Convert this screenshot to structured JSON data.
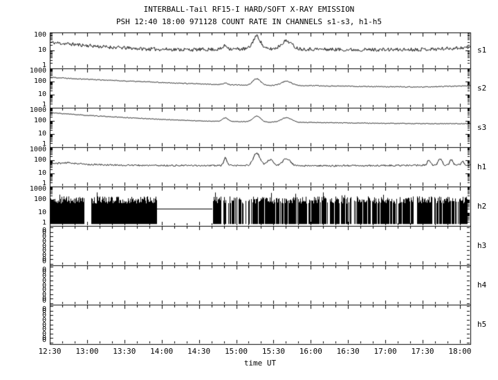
{
  "title": {
    "line1": "INTERBALL-Tail RF15-I HARD/SOFT X-RAY EMISSION",
    "line2": "PSH 12:40 18:00 971128  COUNT RATE IN CHANNELS s1-s3, h1-h5"
  },
  "colors": {
    "axis": "#000000",
    "trace": "#000000",
    "background": "#ffffff"
  },
  "x_axis": {
    "label": "time UT",
    "range_hours": [
      12.5,
      18.14
    ],
    "minor_step_hours": 0.1666667,
    "tick_hours": [
      12.5,
      13,
      13.5,
      14,
      14.5,
      15,
      15.5,
      16,
      16.5,
      17,
      17.5,
      18
    ],
    "tick_labels": [
      "12:30",
      "13:00",
      "13:30",
      "14:00",
      "14:30",
      "15:00",
      "15:30",
      "16:00",
      "16:30",
      "17:00",
      "17:30",
      "18:00"
    ]
  },
  "chart_data": [
    {
      "name": "s1",
      "type": "line",
      "yscale": "log",
      "ylim": [
        1,
        100
      ],
      "ytick_labels": [
        "100",
        "10",
        "1"
      ],
      "noise_log": 0.1,
      "seed": 11,
      "baseline": [
        [
          12.5,
          28
        ],
        [
          12.8,
          22
        ],
        [
          13.2,
          16
        ],
        [
          13.8,
          12
        ],
        [
          14.4,
          11
        ],
        [
          15.0,
          12
        ],
        [
          15.9,
          12
        ],
        [
          16.5,
          11
        ],
        [
          17.2,
          11
        ],
        [
          17.7,
          12
        ],
        [
          18.14,
          15
        ]
      ],
      "peaks": [
        [
          14.85,
          0.03,
          0.2
        ],
        [
          15.27,
          0.05,
          0.72
        ],
        [
          15.67,
          0.07,
          0.45
        ]
      ]
    },
    {
      "name": "s2",
      "type": "line",
      "yscale": "log",
      "ylim": [
        1,
        1000
      ],
      "ytick_labels": [
        "1000",
        "100",
        "10",
        "1"
      ],
      "noise_log": 0.035,
      "seed": 22,
      "baseline": [
        [
          12.5,
          210
        ],
        [
          13.0,
          150
        ],
        [
          13.5,
          110
        ],
        [
          14.0,
          85
        ],
        [
          14.5,
          65
        ],
        [
          15.0,
          55
        ],
        [
          15.5,
          50
        ],
        [
          16.0,
          48
        ],
        [
          16.5,
          44
        ],
        [
          17.0,
          40
        ],
        [
          17.5,
          38
        ],
        [
          18.14,
          48
        ]
      ],
      "peaks": [
        [
          14.85,
          0.03,
          0.12
        ],
        [
          15.27,
          0.05,
          0.5
        ],
        [
          15.67,
          0.07,
          0.32
        ]
      ]
    },
    {
      "name": "s3",
      "type": "line",
      "yscale": "log",
      "ylim": [
        1,
        1000
      ],
      "ytick_labels": [
        "1000",
        "100",
        "10",
        "1"
      ],
      "noise_log": 0.025,
      "seed": 33,
      "baseline": [
        [
          12.5,
          420
        ],
        [
          13.0,
          260
        ],
        [
          13.5,
          180
        ],
        [
          14.0,
          130
        ],
        [
          14.5,
          100
        ],
        [
          15.0,
          88
        ],
        [
          15.5,
          80
        ],
        [
          16.0,
          75
        ],
        [
          16.5,
          70
        ],
        [
          17.0,
          65
        ],
        [
          17.5,
          62
        ],
        [
          18.14,
          62
        ]
      ],
      "peaks": [
        [
          14.85,
          0.035,
          0.28
        ],
        [
          15.27,
          0.05,
          0.45
        ],
        [
          15.67,
          0.07,
          0.35
        ]
      ]
    },
    {
      "name": "h1",
      "type": "line",
      "yscale": "log",
      "ylim": [
        1,
        1000
      ],
      "ytick_labels": [
        "1000",
        "100",
        "10",
        "1"
      ],
      "noise_log": 0.06,
      "seed": 44,
      "baseline": [
        [
          12.5,
          55
        ],
        [
          12.75,
          65
        ],
        [
          13.0,
          48
        ],
        [
          13.5,
          42
        ],
        [
          14.0,
          40
        ],
        [
          15.0,
          40
        ],
        [
          16.0,
          38
        ],
        [
          17.0,
          40
        ],
        [
          17.5,
          42
        ],
        [
          18.14,
          45
        ]
      ],
      "peaks": [
        [
          14.85,
          0.02,
          0.6
        ],
        [
          15.27,
          0.045,
          0.95
        ],
        [
          15.45,
          0.04,
          0.45
        ],
        [
          15.67,
          0.05,
          0.55
        ],
        [
          17.58,
          0.02,
          0.4
        ],
        [
          17.73,
          0.025,
          0.5
        ],
        [
          17.88,
          0.02,
          0.4
        ],
        [
          18.03,
          0.015,
          0.3
        ]
      ]
    },
    {
      "name": "h2",
      "type": "saturated",
      "yscale": "log",
      "ylim": [
        1,
        1000
      ],
      "ytick_labels": [
        "1000",
        "100",
        "10",
        "1"
      ],
      "seed": 55,
      "solid_segments": [
        [
          12.5,
          12.96
        ],
        [
          13.05,
          13.93
        ]
      ],
      "striped_segments": [
        [
          14.68,
          18.14
        ]
      ],
      "gap_line": {
        "t": [
          13.93,
          14.68
        ],
        "value": 20
      },
      "band_top_range": [
        50,
        180
      ],
      "spike_top": 400,
      "band_bottom": 1.4
    },
    {
      "name": "h3",
      "type": "empty",
      "ytick_labels": [
        "0",
        "0",
        "0",
        "0",
        "0",
        "0",
        "0",
        "0",
        "0"
      ]
    },
    {
      "name": "h4",
      "type": "empty",
      "ytick_labels": [
        "0",
        "0",
        "0",
        "0",
        "0",
        "0",
        "0",
        "0",
        "0"
      ]
    },
    {
      "name": "h5",
      "type": "empty",
      "ytick_labels": [
        "0",
        "0",
        "0",
        "0",
        "0",
        "0",
        "0",
        "0",
        "0"
      ]
    }
  ]
}
